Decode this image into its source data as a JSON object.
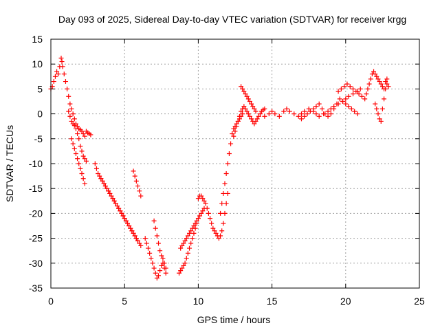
{
  "chart_data": {
    "type": "scatter",
    "title": "Day 093 of 2025, Sidereal Day-to-day VTEC variation (SDTVAR) for receiver krgg",
    "xlabel": "GPS time / hours",
    "ylabel": "SDTVAR / TECUs",
    "xlim": [
      0,
      25
    ],
    "ylim": [
      -35,
      15
    ],
    "xticks": [
      "0",
      "5",
      "10",
      "15",
      "20",
      "25"
    ],
    "yticks": [
      "15",
      "10",
      "5",
      "0",
      "-5",
      "-10",
      "-15",
      "-20",
      "-25",
      "-30",
      "-35"
    ],
    "grid": true,
    "marker": "plus",
    "series_color": "#ff0000",
    "series": [
      {
        "name": "SDTVAR",
        "x": [
          0.0,
          0.1,
          0.2,
          0.3,
          0.4,
          0.5,
          0.6,
          0.7,
          0.75,
          0.8,
          0.9,
          1.0,
          1.1,
          1.2,
          1.3,
          1.4,
          1.5,
          1.6,
          1.7,
          1.8,
          1.9,
          2.0,
          2.1,
          2.2,
          2.3,
          2.4,
          2.5,
          2.6,
          2.7,
          1.2,
          1.3,
          1.4,
          1.5,
          1.6,
          1.7,
          1.8,
          1.9,
          2.0,
          2.1,
          2.2,
          2.3,
          2.4,
          1.4,
          1.5,
          1.6,
          1.7,
          1.8,
          1.9,
          2.0,
          2.1,
          2.2,
          2.3,
          3.0,
          3.1,
          3.2,
          3.3,
          3.4,
          3.5,
          3.6,
          3.7,
          3.8,
          3.9,
          4.0,
          4.1,
          4.2,
          4.3,
          4.4,
          4.5,
          4.6,
          4.7,
          4.8,
          4.9,
          5.0,
          5.1,
          5.2,
          5.3,
          5.4,
          5.5,
          5.6,
          5.7,
          5.8,
          5.9,
          3.4,
          3.5,
          3.6,
          3.7,
          3.8,
          3.9,
          4.0,
          4.1,
          4.2,
          4.3,
          4.4,
          4.5,
          4.6,
          4.7,
          4.8,
          4.9,
          5.0,
          5.1,
          5.2,
          5.3,
          5.4,
          5.5,
          5.6,
          5.7,
          5.8,
          5.9,
          6.0,
          6.1,
          5.6,
          5.7,
          5.8,
          5.9,
          6.0,
          6.1,
          6.4,
          6.5,
          6.6,
          6.7,
          6.8,
          6.9,
          7.0,
          7.1,
          7.2,
          7.3,
          7.4,
          7.5,
          7.6,
          7.7,
          7.8,
          7.0,
          7.1,
          7.2,
          7.3,
          7.4,
          7.5,
          7.6,
          7.7,
          7.8,
          8.7,
          8.8,
          8.9,
          9.0,
          9.1,
          9.2,
          9.3,
          9.4,
          9.5,
          9.6,
          9.7,
          9.8,
          9.9,
          8.8,
          8.9,
          9.0,
          9.1,
          9.2,
          9.3,
          9.4,
          9.5,
          9.6,
          9.7,
          9.8,
          9.9,
          10.0,
          10.1,
          10.2,
          10.3,
          10.4,
          10.0,
          10.1,
          10.2,
          10.3,
          10.4,
          10.5,
          10.6,
          10.7,
          10.8,
          10.9,
          11.0,
          11.1,
          11.2,
          11.3,
          11.4,
          11.5,
          11.6,
          11.7,
          11.8,
          11.9,
          12.0,
          11.5,
          11.6,
          11.7,
          11.8,
          11.9,
          12.0,
          12.1,
          12.2,
          12.3,
          12.4,
          12.5,
          12.6,
          12.7,
          12.8,
          12.9,
          13.0,
          12.4,
          12.5,
          12.6,
          12.7,
          12.8,
          12.9,
          13.0,
          13.1,
          13.2,
          13.3,
          13.4,
          13.5,
          13.6,
          13.7,
          13.8,
          13.9,
          14.0,
          14.1,
          14.2,
          14.3,
          14.4,
          14.5,
          12.9,
          13.0,
          13.1,
          13.2,
          13.3,
          13.4,
          13.5,
          13.6,
          13.7,
          13.8,
          13.9,
          14.5,
          14.8,
          15.0,
          15.2,
          15.5,
          15.8,
          16.0,
          16.2,
          16.5,
          16.8,
          17.0,
          17.2,
          17.5,
          17.8,
          18.0,
          18.2,
          18.5,
          18.8,
          19.0,
          19.2,
          19.5,
          19.8,
          20.0,
          20.2,
          20.5,
          20.8,
          21.0,
          17.0,
          17.2,
          17.4,
          17.6,
          17.8,
          18.0,
          18.2,
          18.4,
          18.6,
          18.8,
          19.0,
          19.2,
          19.4,
          19.6,
          19.8,
          20.0,
          20.2,
          20.4,
          20.6,
          20.8,
          19.5,
          19.7,
          19.9,
          20.1,
          20.3,
          20.5,
          20.7,
          20.9,
          21.1,
          21.3,
          21.4,
          21.5,
          21.6,
          21.7,
          21.8,
          21.9,
          22.0,
          22.1,
          22.2,
          22.3,
          22.4,
          22.5,
          22.6,
          22.7,
          22.8,
          22.0,
          22.1,
          22.2,
          22.3,
          22.4,
          22.5,
          22.6,
          22.7,
          22.8,
          22.9
        ],
        "y": [
          5.0,
          5.5,
          6.5,
          7.5,
          8.5,
          8.0,
          9.5,
          11.2,
          10.5,
          9.5,
          8.0,
          6.5,
          5.0,
          3.5,
          2.0,
          1.0,
          0.0,
          -1.0,
          -2.0,
          -2.5,
          -3.0,
          -3.2,
          -3.5,
          -4.0,
          -4.5,
          -3.5,
          -3.8,
          -4.0,
          -4.2,
          0.5,
          -0.5,
          -1.5,
          -2.0,
          -2.3,
          -3.0,
          -4.0,
          -5.0,
          -6.5,
          -7.5,
          -8.5,
          -9.0,
          -9.5,
          -5.0,
          -6.0,
          -7.0,
          -8.0,
          -9.0,
          -10.0,
          -11.0,
          -12.0,
          -13.0,
          -14.0,
          -10.0,
          -11.0,
          -12.0,
          -12.5,
          -13.0,
          -13.5,
          -14.0,
          -14.5,
          -15.0,
          -15.5,
          -16.0,
          -16.5,
          -17.0,
          -17.5,
          -18.0,
          -18.5,
          -19.0,
          -19.5,
          -20.0,
          -20.5,
          -21.0,
          -21.5,
          -22.0,
          -22.5,
          -23.0,
          -23.5,
          -24.0,
          -24.5,
          -25.0,
          -25.5,
          -13.0,
          -13.5,
          -14.0,
          -14.5,
          -15.0,
          -15.5,
          -16.0,
          -16.5,
          -17.0,
          -17.5,
          -18.0,
          -18.5,
          -19.0,
          -19.5,
          -20.0,
          -20.5,
          -21.0,
          -21.5,
          -22.0,
          -22.5,
          -23.0,
          -23.5,
          -24.0,
          -24.5,
          -25.0,
          -25.5,
          -26.0,
          -26.5,
          -11.5,
          -12.5,
          -13.5,
          -14.5,
          -15.5,
          -16.5,
          -25.0,
          -26.0,
          -27.0,
          -28.0,
          -29.0,
          -30.0,
          -31.0,
          -32.0,
          -33.0,
          -32.5,
          -31.5,
          -30.5,
          -30.0,
          -31.0,
          -32.0,
          -21.5,
          -23.0,
          -24.5,
          -26.0,
          -27.5,
          -28.5,
          -29.0,
          -30.0,
          -31.0,
          -32.0,
          -31.5,
          -31.0,
          -30.5,
          -30.0,
          -29.0,
          -28.0,
          -27.0,
          -26.0,
          -25.0,
          -24.0,
          -23.0,
          -22.0,
          -27.0,
          -26.5,
          -26.0,
          -25.5,
          -25.0,
          -24.5,
          -24.0,
          -23.5,
          -23.0,
          -22.5,
          -22.0,
          -21.5,
          -21.0,
          -20.5,
          -20.0,
          -19.5,
          -19.0,
          -17.0,
          -16.5,
          -16.5,
          -17.0,
          -17.5,
          -18.0,
          -19.0,
          -20.0,
          -21.0,
          -22.0,
          -23.0,
          -23.5,
          -24.0,
          -24.5,
          -25.0,
          -24.5,
          -23.5,
          -22.0,
          -20.0,
          -18.0,
          -16.0,
          -20.0,
          -18.0,
          -16.0,
          -14.0,
          -12.0,
          -10.0,
          -8.0,
          -6.0,
          -4.0,
          -3.0,
          -2.5,
          -2.0,
          -1.5,
          -1.0,
          -0.5,
          0.0,
          -4.5,
          -3.5,
          -2.5,
          -1.5,
          -0.5,
          0.5,
          1.0,
          1.5,
          1.0,
          0.5,
          0.0,
          -0.5,
          -1.0,
          -1.5,
          -2.0,
          -1.5,
          -1.0,
          -0.5,
          0.0,
          0.5,
          0.8,
          1.0,
          5.5,
          5.0,
          4.5,
          4.0,
          3.5,
          3.0,
          2.5,
          2.0,
          1.5,
          1.0,
          0.5,
          -0.5,
          0.0,
          0.5,
          0.0,
          -0.5,
          0.5,
          1.0,
          0.5,
          0.0,
          -0.5,
          0.0,
          0.5,
          1.0,
          0.5,
          0.0,
          -0.5,
          0.0,
          0.5,
          1.0,
          1.5,
          2.0,
          2.5,
          3.0,
          3.5,
          4.0,
          4.5,
          5.0,
          -1.0,
          -0.5,
          0.0,
          0.5,
          1.0,
          1.5,
          2.0,
          1.0,
          0.0,
          -0.5,
          0.0,
          1.0,
          2.0,
          3.0,
          2.5,
          2.0,
          1.5,
          1.0,
          0.5,
          0.0,
          4.5,
          5.0,
          5.5,
          6.0,
          5.5,
          5.0,
          4.5,
          4.0,
          3.5,
          3.0,
          4.0,
          5.0,
          6.0,
          7.0,
          8.0,
          8.5,
          8.0,
          7.5,
          7.0,
          6.5,
          6.0,
          5.5,
          5.0,
          6.5,
          7.0,
          2.0,
          1.0,
          0.0,
          -1.0,
          -1.5,
          1.0,
          3.0,
          5.0,
          6.0,
          5.5
        ]
      }
    ]
  }
}
